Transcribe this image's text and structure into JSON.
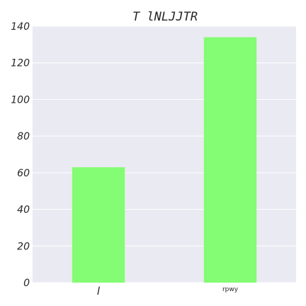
{
  "chart_data": {
    "type": "bar",
    "title": "T lNLJJTR",
    "categories": [
      "l",
      "rpwy"
    ],
    "values": [
      63,
      134
    ],
    "ylim": [
      0,
      140
    ],
    "yticks": [
      0,
      20,
      40,
      60,
      80,
      100,
      120,
      140
    ],
    "bar_color": "#84fc74",
    "background_color": "#eaeaf2",
    "grid": true
  }
}
